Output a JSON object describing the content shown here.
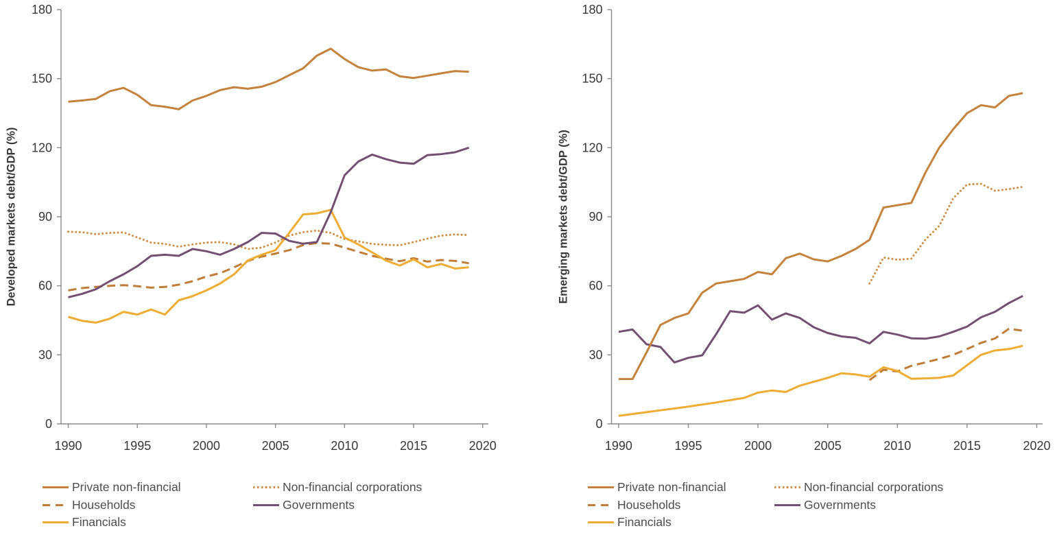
{
  "figure": {
    "background": "#ffffff"
  },
  "style": {
    "axis_line_color": "#8a8a8a",
    "tick_label_color": "#383838",
    "axis_title_color": "#383838",
    "legend_text_color": "#4c4c4c"
  },
  "chart_data": [
    {
      "type": "line",
      "title": "",
      "xlabel": "",
      "ylabel": "Developed markets debt/GDP (%)",
      "ylim": [
        0,
        180
      ],
      "grid": false,
      "legend_position": "below",
      "y_ticks": [
        0,
        30,
        60,
        90,
        120,
        150,
        180
      ],
      "x_ticks": [
        1990,
        1995,
        2000,
        2005,
        2010,
        2015,
        2020
      ],
      "years": [
        1990,
        1991,
        1992,
        1993,
        1994,
        1995,
        1996,
        1997,
        1998,
        1999,
        2000,
        2001,
        2002,
        2003,
        2004,
        2005,
        2006,
        2007,
        2008,
        2009,
        2010,
        2011,
        2012,
        2013,
        2014,
        2015,
        2016,
        2017,
        2018,
        2019
      ],
      "series": [
        {
          "name": "Private non-financial",
          "color": "#c4823c",
          "line_style": "solid",
          "start_year": 1990,
          "values": [
            140,
            140.5,
            141.2,
            144.5,
            146,
            143,
            138.5,
            137.8,
            136.7,
            140.5,
            142.5,
            145,
            146.3,
            145.6,
            146.5,
            148.5,
            151.5,
            154.5,
            160,
            163,
            158.5,
            155,
            153.5,
            154,
            151,
            150.3,
            151.3,
            152.3,
            153.3,
            153
          ]
        },
        {
          "name": "Households",
          "color": "#c07d38",
          "line_style": "dashed",
          "start_year": 1990,
          "values": [
            58,
            59,
            59.5,
            60,
            60.3,
            59.8,
            59.2,
            59.5,
            60.5,
            62,
            64,
            65.5,
            68,
            70.8,
            72.7,
            74,
            75.5,
            77.7,
            78.6,
            78.3,
            76.6,
            74.8,
            73,
            71.8,
            70.7,
            72,
            70.5,
            71.2,
            70.8,
            69.8
          ]
        },
        {
          "name": "Financials",
          "color": "#efac32",
          "line_style": "solid",
          "start_year": 1990,
          "values": [
            46.5,
            44.8,
            44,
            45.7,
            48.7,
            47.5,
            49.7,
            47.5,
            53.7,
            55.5,
            58,
            61,
            65,
            71,
            73.5,
            75.5,
            83,
            91,
            91.5,
            93,
            81,
            78,
            74.5,
            71,
            68.8,
            71.5,
            68,
            69.5,
            67.5,
            68
          ]
        },
        {
          "name": "Non-financial corporations",
          "color": "#cc8e42",
          "line_style": "dotted",
          "start_year": 1990,
          "values": [
            83.5,
            83.3,
            82.4,
            83,
            83.2,
            81,
            78.8,
            78.2,
            77,
            78,
            78.8,
            79,
            78,
            76,
            76.6,
            78.8,
            81.8,
            83.3,
            84,
            83,
            80.3,
            79.3,
            78.2,
            77.8,
            77.6,
            79,
            80.5,
            81.8,
            82.3,
            82
          ]
        },
        {
          "name": "Governments",
          "color": "#734f72",
          "line_style": "solid",
          "start_year": 1990,
          "values": [
            55,
            56.5,
            58.5,
            62,
            65,
            68.5,
            73,
            73.5,
            73,
            76,
            75,
            73.5,
            76,
            79,
            83,
            82.7,
            79.5,
            78.3,
            79,
            92,
            108,
            114,
            117,
            115,
            113.5,
            113,
            116.8,
            117.2,
            118,
            120
          ]
        }
      ]
    },
    {
      "type": "line",
      "title": "",
      "xlabel": "",
      "ylabel": "Emerging markets debt/GDP (%)",
      "ylim": [
        0,
        180
      ],
      "grid": false,
      "legend_position": "below",
      "y_ticks": [
        0,
        30,
        60,
        90,
        120,
        150,
        180
      ],
      "x_ticks": [
        1990,
        1995,
        2000,
        2005,
        2010,
        2015,
        2020
      ],
      "years": [
        1990,
        1991,
        1992,
        1993,
        1994,
        1995,
        1996,
        1997,
        1998,
        1999,
        2000,
        2001,
        2002,
        2003,
        2004,
        2005,
        2006,
        2007,
        2008,
        2009,
        2010,
        2011,
        2012,
        2013,
        2014,
        2015,
        2016,
        2017,
        2018,
        2019
      ],
      "series": [
        {
          "name": "Private non-financial",
          "color": "#c4823c",
          "line_style": "solid",
          "start_year": 1990,
          "values": [
            19.5,
            19.5,
            31,
            43,
            46,
            48,
            57,
            61,
            62,
            63,
            66,
            65,
            72,
            74,
            71.5,
            70.6,
            73,
            76,
            80,
            94,
            95,
            96,
            109,
            120,
            128,
            135,
            138.5,
            137.5,
            142.5,
            143.7
          ]
        },
        {
          "name": "Households",
          "color": "#c07d38",
          "line_style": "dashed",
          "start_year": 2008,
          "values": [
            19,
            23.5,
            22.8,
            25.2,
            26.7,
            28.2,
            30,
            32.5,
            35.2,
            37.1,
            41.3,
            40.5
          ]
        },
        {
          "name": "Financials",
          "color": "#efac32",
          "line_style": "solid",
          "start_year": 1990,
          "values": [
            3.5,
            4.3,
            5.1,
            5.9,
            6.7,
            7.5,
            8.4,
            9.3,
            10.3,
            11.3,
            13.6,
            14.5,
            13.9,
            16.6,
            18.3,
            20,
            22,
            21.5,
            20.5,
            24.6,
            23,
            19.6,
            19.8,
            20,
            21,
            25.5,
            30,
            31.9,
            32.5,
            33.9
          ]
        },
        {
          "name": "Non-financial corporations",
          "color": "#cc8e42",
          "line_style": "dotted",
          "start_year": 2008,
          "values": [
            61,
            72.3,
            71.3,
            71.8,
            80,
            86,
            98,
            104,
            104.3,
            101.3,
            102,
            103
          ]
        },
        {
          "name": "Governments",
          "color": "#734f72",
          "line_style": "solid",
          "start_year": 1990,
          "values": [
            40,
            41,
            34.6,
            33.4,
            26.7,
            28.7,
            29.8,
            39,
            49,
            48.3,
            51.5,
            45.3,
            48,
            46,
            42,
            39.5,
            38,
            37.4,
            35,
            40,
            38.8,
            37.2,
            37,
            38,
            40,
            42.3,
            46.3,
            48.7,
            52.5,
            55.6
          ]
        }
      ]
    }
  ]
}
